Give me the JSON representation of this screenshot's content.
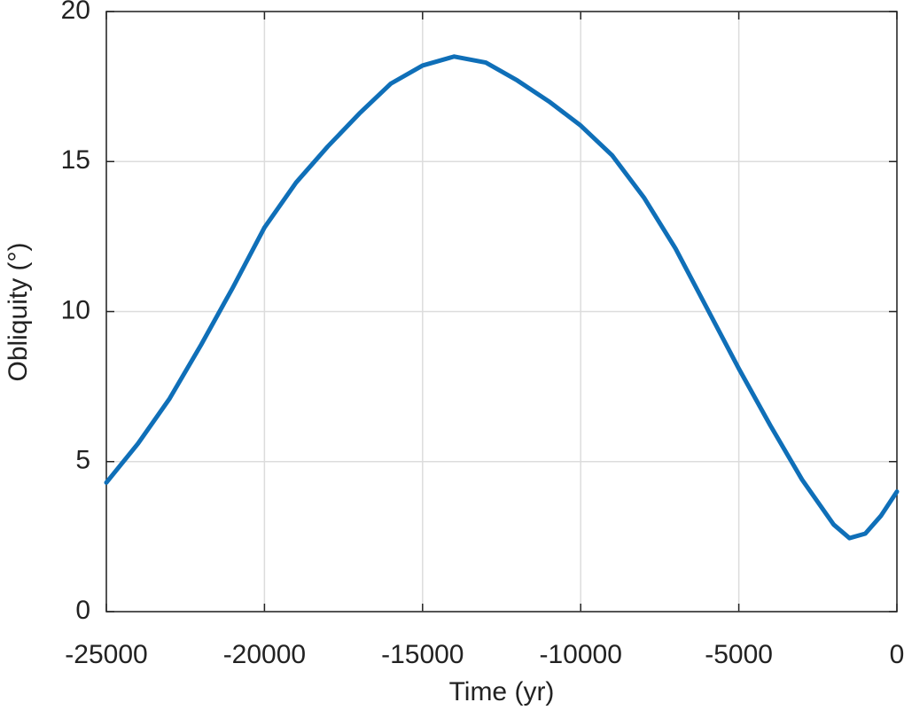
{
  "chart_data": {
    "type": "line",
    "x_label": "Time (yr)",
    "y_label": "Obliquity (°)",
    "x": [
      -25000,
      -24000,
      -23000,
      -22000,
      -21000,
      -20000,
      -19000,
      -18000,
      -17000,
      -16000,
      -15000,
      -14000,
      -13000,
      -12000,
      -11000,
      -10000,
      -9000,
      -8000,
      -7000,
      -6000,
      -5000,
      -4000,
      -3000,
      -2000,
      -1500,
      -1000,
      -500,
      0
    ],
    "series": [
      {
        "color": "#0f6fb8",
        "values": [
          4.3,
          5.6,
          7.1,
          8.9,
          10.8,
          12.8,
          14.3,
          15.5,
          16.6,
          17.6,
          18.2,
          18.5,
          18.3,
          17.7,
          17.0,
          16.2,
          15.2,
          13.8,
          12.1,
          10.1,
          8.1,
          6.2,
          4.4,
          2.9,
          2.45,
          2.6,
          3.2,
          4.0
        ]
      }
    ],
    "xlim": [
      -25000,
      0
    ],
    "xticks": [
      -25000,
      -20000,
      -15000,
      -10000,
      -5000,
      0
    ],
    "ylim": [
      0,
      20
    ],
    "yticks": [
      0,
      5,
      10,
      15,
      20
    ],
    "grid": true
  }
}
